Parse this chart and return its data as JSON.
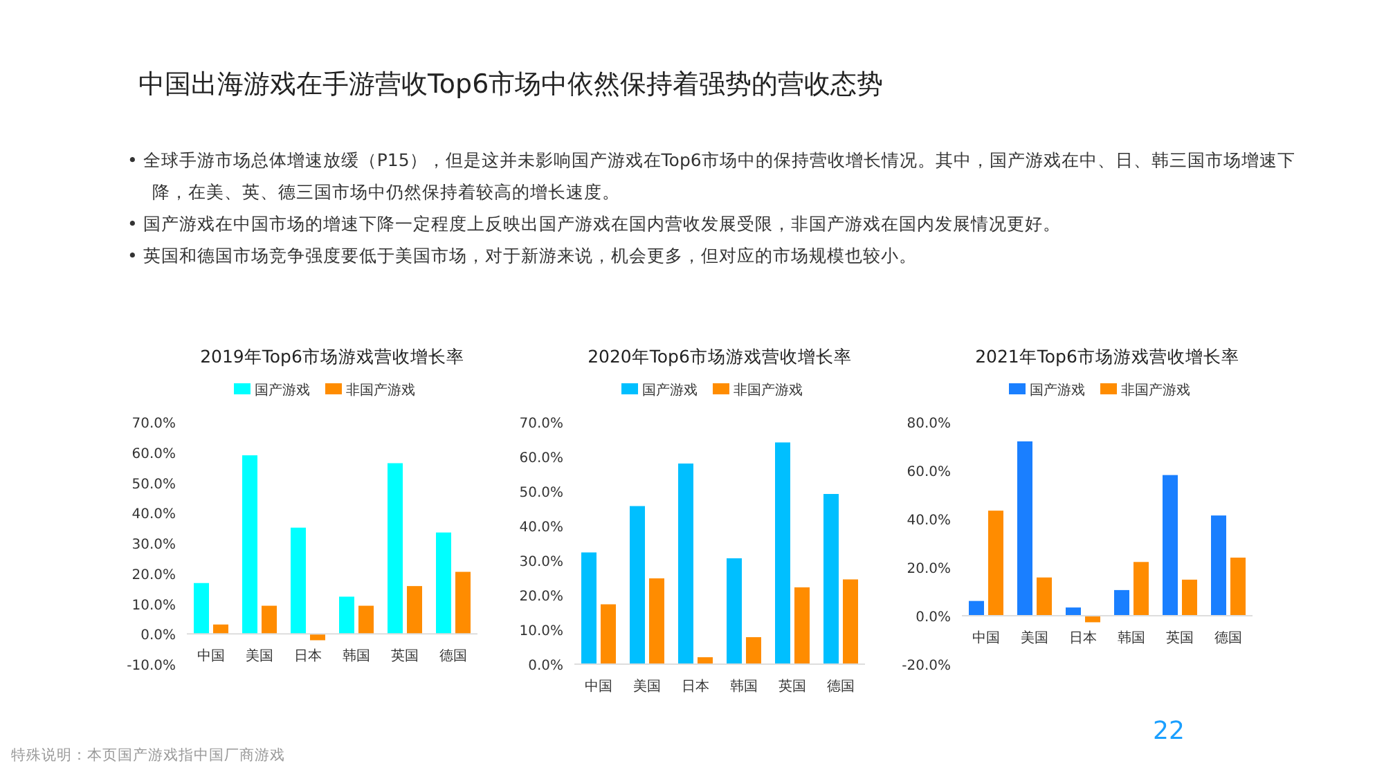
{
  "chart_data": [
    {
      "type": "other",
      "title": "中国出海游戏在手游营收Top6市场中依然保持着强势的营收态势",
      "annotations": [
        "•  全球手游市场总体增速放缓（P15），但是这并未影响国产游戏在Top6市场中的保持营收增长情况。其中，国产游戏在中、日、韩三国市场增速下降，在美、英、德三国市场中仍然保持着较高的增长速度。",
        "•  国产游戏在中国市场的增速下降一定程度上反映出国产游戏在国内营收发展受限，非国产游戏在国内发展情况更好。",
        "•  英国和德国市场竞争强度要低于美国市场，对于新游来说，机会更多，但对应的市场规模也较小。",
        "22",
        "特殊说明：本页国产游戏指中国厂商游戏"
      ]
    },
    {
      "type": "bar",
      "title": "2019年Top6市场游戏营收增长率",
      "categories": [
        "中国",
        "美国",
        "日本",
        "韩国",
        "英国",
        "德国"
      ],
      "series": [
        {
          "name": "国产游戏",
          "color": "#00ffff",
          "values": [
            16.8,
            59.0,
            35.1,
            12.3,
            56.4,
            33.5
          ]
        },
        {
          "name": "非国产游戏",
          "color": "#ff8c00",
          "values": [
            3.1,
            9.3,
            -2.1,
            9.3,
            15.8,
            20.5
          ]
        }
      ],
      "ylim": [
        -10,
        70
      ],
      "yticks": [
        {
          "value": -10,
          "label": "-10.0%"
        },
        {
          "value": 0,
          "label": "0.0%"
        },
        {
          "value": 10,
          "label": "10.0%"
        },
        {
          "value": 20,
          "label": "20.0%"
        },
        {
          "value": 30,
          "label": "30.0%"
        },
        {
          "value": 40,
          "label": "40.0%"
        },
        {
          "value": 50,
          "label": "50.0%"
        },
        {
          "value": 60,
          "label": "60.0%"
        },
        {
          "value": 70,
          "label": "70.0%"
        }
      ],
      "legend": "top",
      "grid": false
    },
    {
      "type": "bar",
      "title": "2020年Top6市场游戏营收增长率",
      "categories": [
        "中国",
        "美国",
        "日本",
        "韩国",
        "英国",
        "德国"
      ],
      "series": [
        {
          "name": "国产游戏",
          "color": "#00bfff",
          "values": [
            32.3,
            45.7,
            58.0,
            30.6,
            64.1,
            49.2
          ]
        },
        {
          "name": "非国产游戏",
          "color": "#ff8c00",
          "values": [
            17.3,
            24.8,
            2.0,
            7.8,
            22.2,
            24.5
          ]
        }
      ],
      "ylim": [
        0,
        70
      ],
      "yticks": [
        {
          "value": 0,
          "label": "0.0%"
        },
        {
          "value": 10,
          "label": "10.0%"
        },
        {
          "value": 20,
          "label": "20.0%"
        },
        {
          "value": 30,
          "label": "30.0%"
        },
        {
          "value": 40,
          "label": "40.0%"
        },
        {
          "value": 50,
          "label": "50.0%"
        },
        {
          "value": 60,
          "label": "60.0%"
        },
        {
          "value": 70,
          "label": "70.0%"
        }
      ],
      "legend": "top",
      "grid": false
    },
    {
      "type": "bar",
      "title": "2021年Top6市场游戏营收增长率",
      "categories": [
        "中国",
        "美国",
        "日本",
        "韩国",
        "英国",
        "德国"
      ],
      "series": [
        {
          "name": "国产游戏",
          "color": "#1a7fff",
          "values": [
            6.1,
            72.0,
            3.4,
            10.6,
            58.1,
            41.4
          ]
        },
        {
          "name": "非国产游戏",
          "color": "#ff8c00",
          "values": [
            43.4,
            15.8,
            -2.7,
            22.2,
            14.9,
            24.0
          ]
        }
      ],
      "ylim": [
        -20,
        80
      ],
      "yticks": [
        {
          "value": -20,
          "label": "-20.0%"
        },
        {
          "value": 0,
          "label": "0.0%"
        },
        {
          "value": 20,
          "label": "20.0%"
        },
        {
          "value": 40,
          "label": "40.0%"
        },
        {
          "value": 60,
          "label": "60.0%"
        },
        {
          "value": 80,
          "label": "80.0%"
        }
      ],
      "legend": "top",
      "grid": false
    }
  ]
}
